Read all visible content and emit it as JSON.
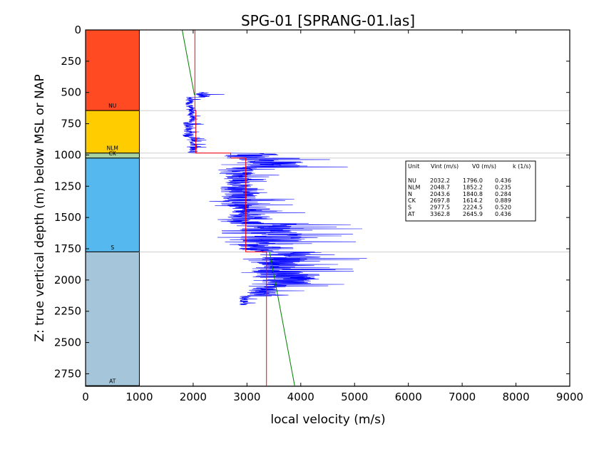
{
  "chart_data": {
    "type": "line",
    "title": "SPG-01 [SPRANG-01.las]",
    "xlabel": "local velocity (m/s)",
    "ylabel": "Z: true vertical depth (m) below MSL or NAP",
    "xlim": [
      0,
      9000
    ],
    "ylim": [
      2850,
      0
    ],
    "y_inverted": true,
    "grid": false,
    "x_ticks": [
      0,
      1000,
      2000,
      3000,
      4000,
      5000,
      6000,
      7000,
      8000,
      9000
    ],
    "x_tick_labels": [
      "0",
      "1000",
      "2000",
      "3000",
      "4000",
      "5000",
      "6000",
      "7000",
      "8000",
      "9000"
    ],
    "y_ticks": [
      0,
      250,
      500,
      750,
      1000,
      1250,
      1500,
      1750,
      2000,
      2250,
      2500,
      2750
    ],
    "y_tick_labels": [
      "0",
      "250",
      "500",
      "750",
      "1000",
      "1250",
      "1500",
      "1750",
      "2000",
      "2250",
      "2500",
      "2750"
    ],
    "units": [
      {
        "name": "NU",
        "top": 0,
        "base": 645,
        "color": "#ff4a22",
        "label_depth": 620
      },
      {
        "name": "NLM",
        "top": 645,
        "base": 985,
        "color": "#ffcc00",
        "label_depth": 960
      },
      {
        "name": "CK",
        "top": 985,
        "base": 1025,
        "color": "#a8d2a0",
        "label_depth": 1003
      },
      {
        "name": "S",
        "top": 1025,
        "base": 1775,
        "color": "#55b9ef",
        "label_depth": 1757
      },
      {
        "name": "AT",
        "top": 1775,
        "base": 2845,
        "color": "#a5c6da",
        "label_depth": 2825
      }
    ],
    "column_x_range": [
      0,
      1000
    ],
    "boundary_depths": [
      645,
      985,
      1025,
      1775,
      2845
    ],
    "series": [
      {
        "role": "log-velocity",
        "color": "#0000ff",
        "segments": [
          {
            "top": 500,
            "base": 540,
            "vmin": 1950,
            "vmax": 2600
          },
          {
            "top": 540,
            "base": 645,
            "vmin": 1820,
            "vmax": 2150
          },
          {
            "top": 645,
            "base": 740,
            "vmin": 1880,
            "vmax": 2150
          },
          {
            "top": 740,
            "base": 860,
            "vmin": 1760,
            "vmax": 2200
          },
          {
            "top": 860,
            "base": 985,
            "vmin": 1880,
            "vmax": 2250
          },
          {
            "top": 985,
            "base": 1025,
            "vmin": 2100,
            "vmax": 4700
          },
          {
            "top": 1025,
            "base": 1100,
            "vmin": 2500,
            "vmax": 5200
          },
          {
            "top": 1100,
            "base": 1250,
            "vmin": 2450,
            "vmax": 3650
          },
          {
            "top": 1250,
            "base": 1400,
            "vmin": 2300,
            "vmax": 3950
          },
          {
            "top": 1400,
            "base": 1550,
            "vmin": 2400,
            "vmax": 4200
          },
          {
            "top": 1550,
            "base": 1700,
            "vmin": 2450,
            "vmax": 5300
          },
          {
            "top": 1700,
            "base": 1775,
            "vmin": 2600,
            "vmax": 4400
          },
          {
            "top": 1775,
            "base": 1850,
            "vmin": 2900,
            "vmax": 5650
          },
          {
            "top": 1850,
            "base": 1950,
            "vmin": 2800,
            "vmax": 5000
          },
          {
            "top": 1950,
            "base": 2000,
            "vmin": 2750,
            "vmax": 5600
          },
          {
            "top": 2000,
            "base": 2050,
            "vmin": 2750,
            "vmax": 5250
          },
          {
            "top": 2050,
            "base": 2130,
            "vmin": 2850,
            "vmax": 4100
          },
          {
            "top": 2130,
            "base": 2200,
            "vmin": 2800,
            "vmax": 3200
          }
        ]
      },
      {
        "role": "interval-velocity",
        "color": "#ff0000",
        "steps": [
          {
            "top": 0,
            "base": 645,
            "v": 2032.2
          },
          {
            "top": 645,
            "base": 985,
            "v": 2048.7
          },
          {
            "top": 985,
            "base": 1025,
            "v": 2697.8
          },
          {
            "top": 1025,
            "base": 1775,
            "v": 2977.5
          },
          {
            "top": 1775,
            "base": 2845,
            "v": 3362.8
          }
        ]
      },
      {
        "role": "linear-velocity-model",
        "color": "#008000",
        "pieces": [
          {
            "v0": 1796.0,
            "k": 0.436,
            "from": 0,
            "to": 520
          },
          {
            "v0": 2645.9,
            "k": 0.436,
            "from": 1775,
            "to": 2845
          }
        ]
      }
    ],
    "legend_box": {
      "position": "right",
      "header": [
        "Unit",
        "Vint (m/s)",
        "V0 (m/s)",
        "k (1/s)"
      ],
      "rows": [
        [
          "NU",
          "2032.2",
          "1796.0",
          "0.436"
        ],
        [
          "NLM",
          "2048.7",
          "1852.2",
          "0.235"
        ],
        [
          "N",
          "2043.6",
          "1840.8",
          "0.284"
        ],
        [
          "CK",
          "2697.8",
          "1614.2",
          "0.889"
        ],
        [
          "S",
          "2977.5",
          "2224.5",
          "0.520"
        ],
        [
          "AT",
          "3362.8",
          "2645.9",
          "0.436"
        ]
      ]
    }
  }
}
